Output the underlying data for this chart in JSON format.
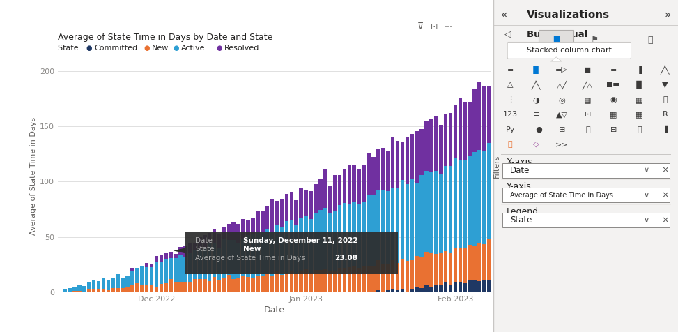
{
  "title": "Average of State Time in Days by Date and State",
  "xlabel": "Date",
  "ylabel": "Average of State Time in Days",
  "legend_title": "State",
  "legend_items": [
    "Committed",
    "New",
    "Active",
    "Resolved"
  ],
  "legend_colors": [
    "#1F3864",
    "#E97132",
    "#2E9FD3",
    "#7030A0"
  ],
  "ylim": [
    0,
    210
  ],
  "yticks": [
    0,
    50,
    100,
    150,
    200
  ],
  "n_bars": 90,
  "x_tick_positions": [
    20,
    51,
    82
  ],
  "x_tick_labels": [
    "Dec 2022",
    "Jan 2023",
    "Feb 2023"
  ],
  "chart_bg": "#FFFFFF",
  "panel_bg": "#F3F2F1",
  "grid_color": "#E0E0E0",
  "tooltip_bg": "#2D2D2D",
  "title_color": "#252423",
  "axis_label_color": "#605E5C",
  "tick_color": "#8A8886",
  "committed_color": "#1F3864",
  "new_color": "#E97132",
  "active_color": "#2E9FD3",
  "resolved_color": "#7030A0",
  "separator_color": "#C8C6C4",
  "panel_text_color": "#252423",
  "icon_blue": "#0078D4",
  "icon_dark": "#3B3A39"
}
